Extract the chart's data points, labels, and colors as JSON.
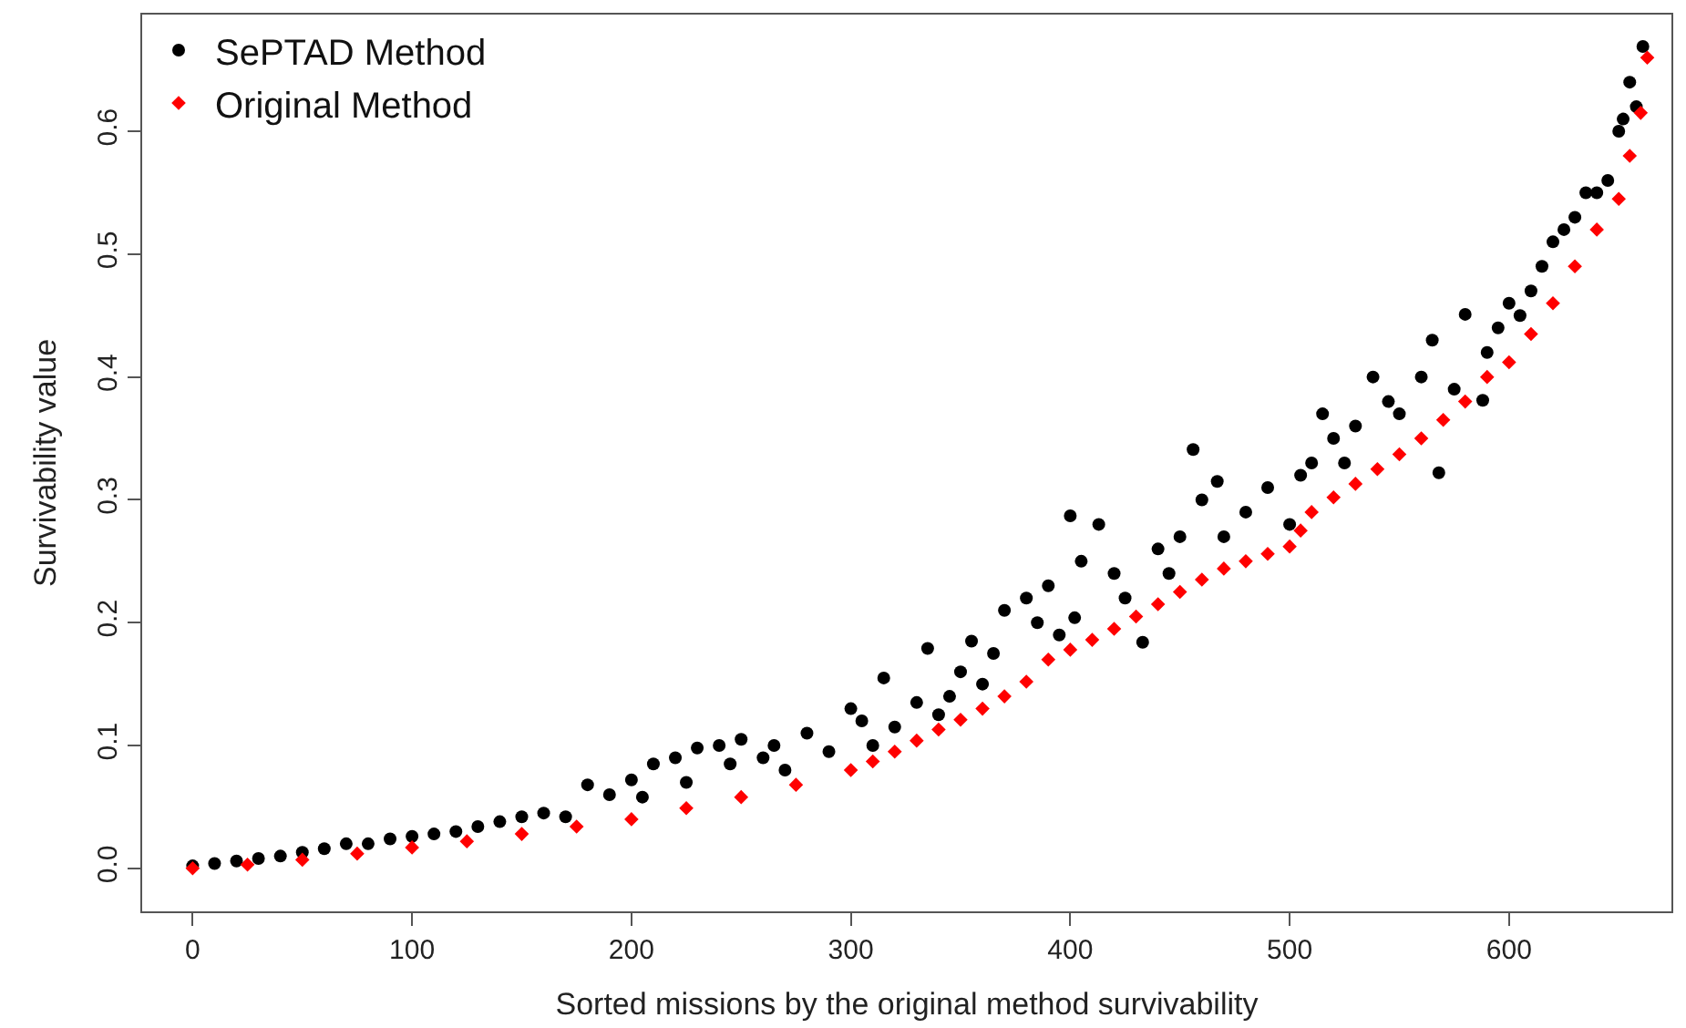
{
  "chart_data": {
    "type": "scatter",
    "xlabel": "Sorted missions by the original method survivability",
    "ylabel": "Survivability value",
    "xlim": [
      -23,
      674
    ],
    "ylim": [
      -0.035,
      0.695
    ],
    "xticks": [
      0,
      100,
      200,
      300,
      400,
      500,
      600
    ],
    "yticks": [
      {
        "value": 0,
        "label": "0.0"
      },
      0.1,
      0.2,
      0.3,
      0.4,
      0.5,
      0.6
    ],
    "legend": "top left",
    "series": [
      {
        "name": "SePTAD Method",
        "color": "#000000",
        "marker": "circle",
        "x": [
          0,
          10,
          20,
          30,
          40,
          50,
          60,
          70,
          80,
          90,
          100,
          110,
          120,
          130,
          140,
          150,
          160,
          170,
          180,
          190,
          200,
          205,
          210,
          220,
          225,
          230,
          240,
          245,
          250,
          260,
          265,
          270,
          280,
          290,
          300,
          305,
          310,
          315,
          320,
          330,
          335,
          340,
          345,
          350,
          355,
          360,
          365,
          370,
          380,
          385,
          390,
          395,
          400,
          402,
          405,
          413,
          420,
          425,
          433,
          440,
          445,
          450,
          456,
          460,
          467,
          470,
          480,
          490,
          500,
          505,
          510,
          515,
          520,
          525,
          530,
          538,
          545,
          550,
          560,
          565,
          568,
          575,
          580,
          588,
          590,
          595,
          600,
          605,
          610,
          615,
          620,
          625,
          630,
          635,
          640,
          645,
          650,
          652,
          655,
          658,
          661
        ],
        "values": [
          0.002,
          0.004,
          0.006,
          0.008,
          0.01,
          0.013,
          0.016,
          0.02,
          0.02,
          0.024,
          0.026,
          0.028,
          0.03,
          0.034,
          0.038,
          0.042,
          0.045,
          0.042,
          0.068,
          0.06,
          0.072,
          0.058,
          0.085,
          0.09,
          0.07,
          0.098,
          0.1,
          0.085,
          0.105,
          0.09,
          0.1,
          0.08,
          0.11,
          0.095,
          0.13,
          0.12,
          0.1,
          0.155,
          0.115,
          0.135,
          0.179,
          0.125,
          0.14,
          0.16,
          0.185,
          0.15,
          0.175,
          0.21,
          0.22,
          0.2,
          0.23,
          0.19,
          0.287,
          0.204,
          0.25,
          0.28,
          0.24,
          0.22,
          0.184,
          0.26,
          0.24,
          0.27,
          0.341,
          0.3,
          0.315,
          0.27,
          0.29,
          0.31,
          0.28,
          0.32,
          0.33,
          0.37,
          0.35,
          0.33,
          0.36,
          0.4,
          0.38,
          0.37,
          0.4,
          0.43,
          0.322,
          0.39,
          0.451,
          0.381,
          0.42,
          0.44,
          0.46,
          0.45,
          0.47,
          0.49,
          0.51,
          0.52,
          0.53,
          0.55,
          0.55,
          0.56,
          0.6,
          0.61,
          0.64,
          0.62,
          0.669
        ]
      },
      {
        "name": "Original Method",
        "color": "#ff0000",
        "marker": "diamond",
        "x": [
          0,
          25,
          50,
          75,
          100,
          125,
          150,
          175,
          200,
          225,
          250,
          275,
          300,
          310,
          320,
          330,
          340,
          350,
          360,
          370,
          380,
          390,
          400,
          410,
          420,
          430,
          440,
          450,
          460,
          470,
          480,
          490,
          500,
          505,
          510,
          520,
          530,
          540,
          550,
          560,
          570,
          580,
          590,
          600,
          610,
          620,
          630,
          640,
          650,
          655,
          660,
          663
        ],
        "values": [
          0.0,
          0.003,
          0.007,
          0.012,
          0.017,
          0.022,
          0.028,
          0.034,
          0.04,
          0.049,
          0.058,
          0.068,
          0.08,
          0.087,
          0.095,
          0.104,
          0.113,
          0.121,
          0.13,
          0.14,
          0.152,
          0.17,
          0.178,
          0.186,
          0.195,
          0.205,
          0.215,
          0.225,
          0.235,
          0.244,
          0.25,
          0.256,
          0.262,
          0.275,
          0.29,
          0.302,
          0.313,
          0.325,
          0.337,
          0.35,
          0.365,
          0.38,
          0.4,
          0.412,
          0.435,
          0.46,
          0.49,
          0.52,
          0.545,
          0.58,
          0.615,
          0.66
        ]
      }
    ]
  }
}
